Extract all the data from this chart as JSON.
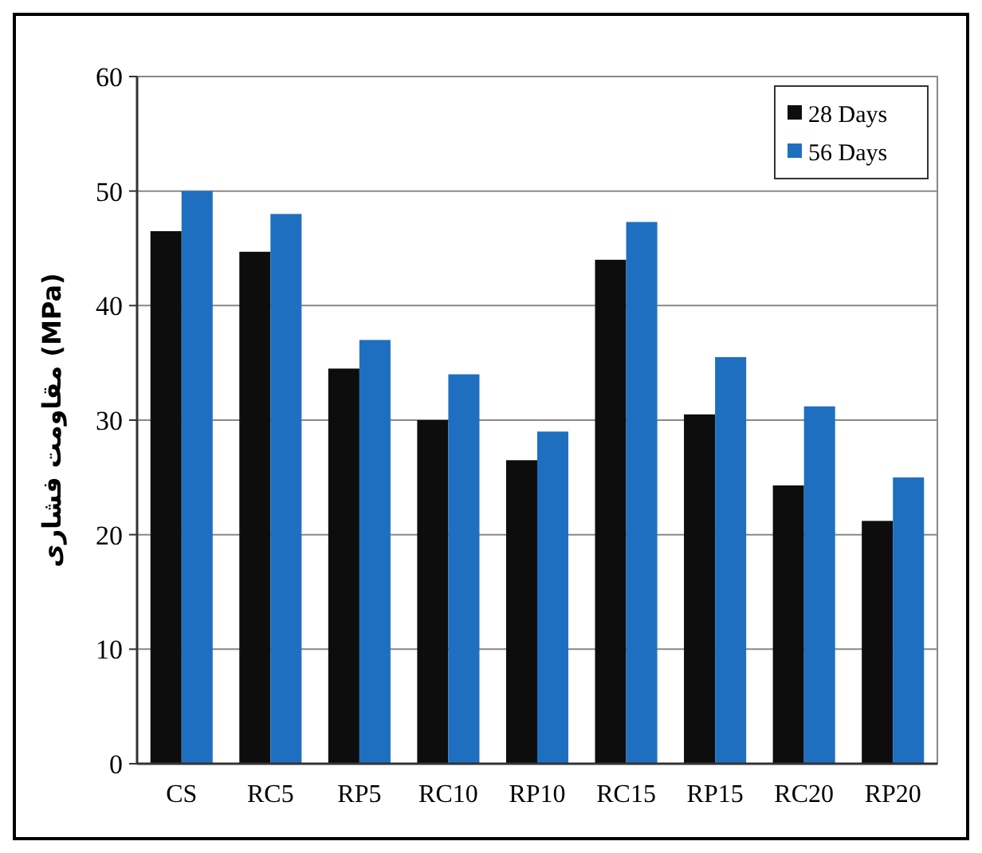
{
  "chart_data": {
    "type": "bar",
    "ylabel": "مقاومت فشاری (MPa)",
    "categories": [
      "CS",
      "RC5",
      "RP5",
      "RC10",
      "RP10",
      "RC15",
      "RP15",
      "RC20",
      "RP20"
    ],
    "series": [
      {
        "name": "28 Days",
        "color": "#0d0d0d",
        "values": [
          46.5,
          44.7,
          34.5,
          30,
          26.5,
          44,
          30.5,
          24.3,
          21.2
        ]
      },
      {
        "name": "56 Days",
        "color": "#1f6fc0",
        "values": [
          50,
          48,
          37,
          34,
          29,
          47.3,
          35.5,
          31.2,
          25
        ]
      }
    ],
    "ylim": [
      0,
      60
    ],
    "yticks": [
      0,
      10,
      20,
      30,
      40,
      50,
      60
    ],
    "grid": "y",
    "legend": "top right"
  }
}
